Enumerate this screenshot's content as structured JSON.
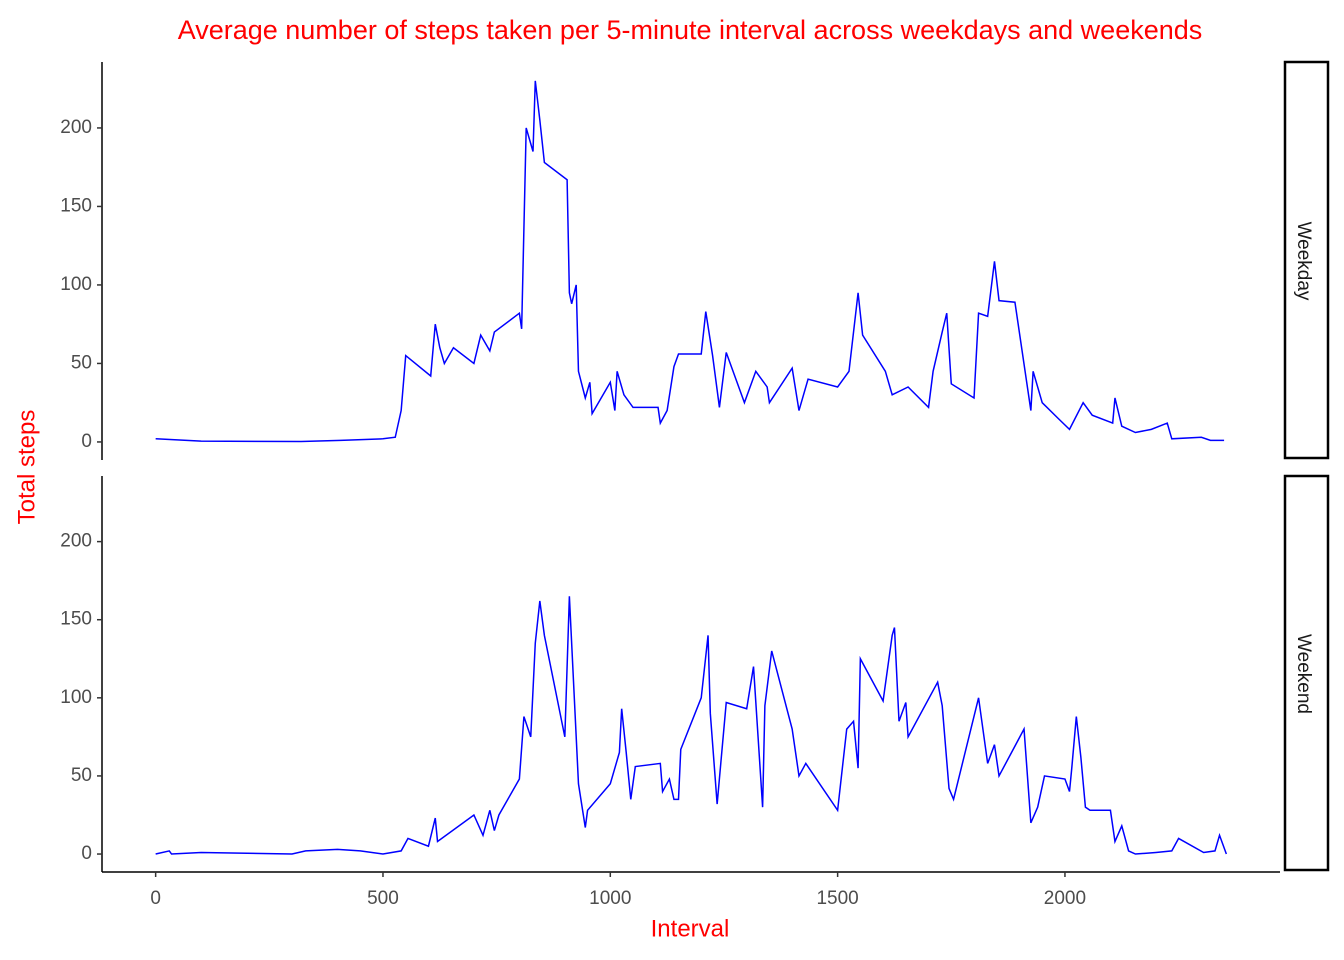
{
  "chart_data": {
    "type": "line",
    "title": "Average number of steps taken per 5-minute interval across weekdays and weekends",
    "x_label": "Interval",
    "y_label": "Total steps",
    "xlim": [
      -118,
      2473
    ],
    "xticks": [
      0,
      500,
      1000,
      1500,
      2000
    ],
    "ylim": [
      -11.5,
      242
    ],
    "yticks": [
      0,
      50,
      100,
      150,
      200
    ],
    "series": [
      {
        "name": "Weekday",
        "color": "#0000ff",
        "x": [
          0,
          100,
          320,
          407,
          500,
          527,
          540,
          550,
          605,
          615,
          625,
          635,
          655,
          700,
          715,
          735,
          745,
          800,
          805,
          815,
          830,
          835,
          845,
          855,
          905,
          910,
          915,
          925,
          930,
          945,
          955,
          960,
          1000,
          1010,
          1015,
          1030,
          1050,
          1105,
          1110,
          1125,
          1140,
          1150,
          1200,
          1210,
          1225,
          1240,
          1255,
          1295,
          1320,
          1345,
          1350,
          1400,
          1415,
          1435,
          1500,
          1525,
          1545,
          1555,
          1605,
          1620,
          1655,
          1700,
          1710,
          1730,
          1740,
          1750,
          1800,
          1810,
          1830,
          1845,
          1855,
          1890,
          1925,
          1930,
          1950,
          1985,
          2010,
          2040,
          2060,
          2105,
          2110,
          2125,
          2155,
          2190,
          2225,
          2235,
          2300,
          2320,
          2350
        ],
        "values": [
          2,
          0.5,
          0.3,
          1,
          2,
          3,
          20,
          55,
          42,
          75,
          60,
          50,
          60,
          50,
          68,
          58,
          70,
          82,
          72,
          200,
          185,
          230,
          205,
          178,
          167,
          95,
          88,
          100,
          45,
          28,
          38,
          18,
          38,
          20,
          45,
          30,
          22,
          22,
          12,
          20,
          48,
          56,
          56,
          83,
          55,
          22,
          57,
          25,
          45,
          35,
          25,
          47,
          20,
          40,
          35,
          45,
          95,
          68,
          45,
          30,
          35,
          22,
          45,
          70,
          82,
          37,
          28,
          82,
          80,
          115,
          90,
          89,
          20,
          45,
          25,
          15,
          8,
          25,
          17,
          12,
          28,
          10,
          6,
          8,
          12,
          2,
          3,
          1,
          1
        ]
      },
      {
        "name": "Weekend",
        "color": "#0000ff",
        "x": [
          0,
          30,
          35,
          100,
          300,
          330,
          400,
          450,
          500,
          540,
          555,
          600,
          615,
          620,
          700,
          720,
          735,
          745,
          755,
          800,
          810,
          825,
          835,
          845,
          855,
          900,
          910,
          930,
          945,
          950,
          1000,
          1020,
          1025,
          1035,
          1045,
          1055,
          1110,
          1115,
          1130,
          1140,
          1150,
          1155,
          1200,
          1215,
          1220,
          1235,
          1255,
          1300,
          1315,
          1325,
          1335,
          1340,
          1355,
          1400,
          1415,
          1430,
          1500,
          1520,
          1535,
          1545,
          1550,
          1600,
          1620,
          1625,
          1635,
          1650,
          1655,
          1720,
          1730,
          1745,
          1755,
          1810,
          1830,
          1845,
          1855,
          1910,
          1925,
          1940,
          1955,
          2000,
          2010,
          2015,
          2025,
          2035,
          2045,
          2055,
          2100,
          2110,
          2125,
          2140,
          2155,
          2200,
          2235,
          2250,
          2305,
          2330,
          2340,
          2355
        ],
        "values": [
          0,
          2,
          0,
          1,
          0,
          2,
          3,
          2,
          0,
          2,
          10,
          5,
          23,
          8,
          25,
          12,
          28,
          15,
          25,
          48,
          88,
          75,
          135,
          162,
          140,
          75,
          165,
          45,
          17,
          28,
          45,
          65,
          93,
          65,
          35,
          56,
          58,
          40,
          48,
          35,
          35,
          67,
          100,
          140,
          90,
          32,
          97,
          93,
          120,
          75,
          30,
          95,
          130,
          80,
          50,
          58,
          28,
          80,
          85,
          55,
          125,
          98,
          140,
          145,
          85,
          97,
          75,
          110,
          95,
          42,
          35,
          100,
          58,
          70,
          50,
          80,
          20,
          30,
          50,
          48,
          40,
          55,
          88,
          62,
          30,
          28,
          28,
          8,
          18,
          2,
          0,
          1,
          2,
          10,
          1,
          2,
          12,
          0
        ]
      }
    ]
  }
}
